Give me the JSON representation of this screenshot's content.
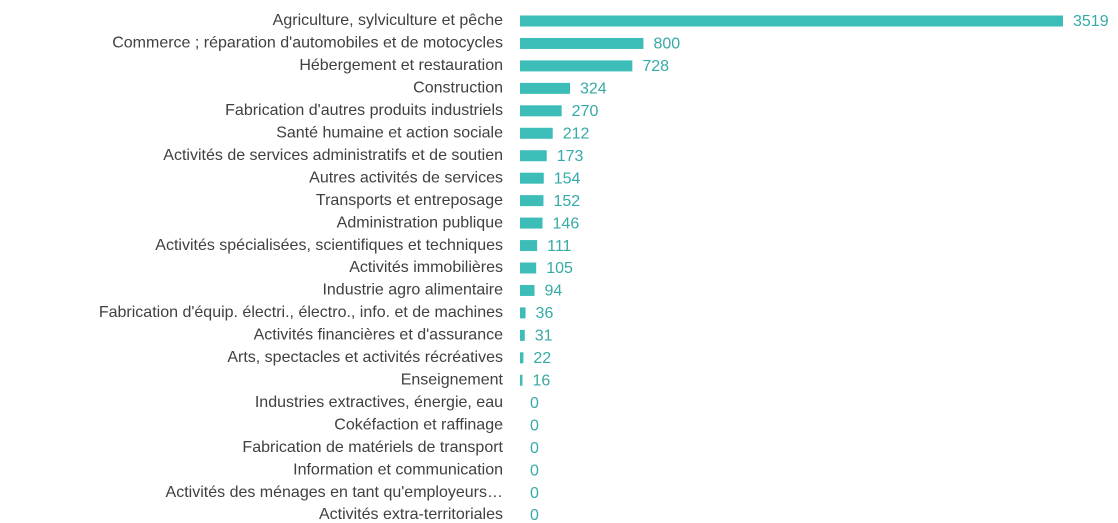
{
  "chart_data": {
    "type": "bar",
    "orientation": "horizontal",
    "categories": [
      "Agriculture, sylviculture et pêche",
      "Commerce ; réparation d'automobiles et de motocycles",
      "Hébergement et restauration",
      "Construction",
      "Fabrication d'autres produits industriels",
      "Santé humaine et action sociale",
      "Activités de services administratifs et de soutien",
      "Autres activités de services",
      "Transports et entreposage",
      "Administration publique",
      "Activités spécialisées, scientifiques et techniques",
      "Activités immobilières",
      "Industrie agro alimentaire",
      "Fabrication d'équip. électri., électro., info. et de machines",
      "Activités financières et d'assurance",
      "Arts, spectacles et activités récréatives",
      "Enseignement",
      "Industries extractives, énergie, eau",
      "Cokéfaction et raffinage",
      "Fabrication de matériels de transport",
      "Information et communication",
      "Activités des ménages en tant qu'employeurs…",
      "Activités extra-territoriales"
    ],
    "values": [
      3519,
      800,
      728,
      324,
      270,
      212,
      173,
      154,
      152,
      146,
      111,
      105,
      94,
      36,
      31,
      22,
      16,
      0,
      0,
      0,
      0,
      0,
      0
    ],
    "color": "#3dbdb8",
    "label_color": "#36aaa6"
  }
}
